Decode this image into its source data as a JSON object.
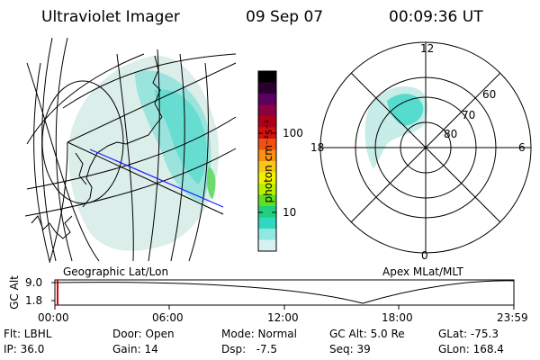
{
  "header": {
    "instrument": "Ultraviolet Imager",
    "date": "09 Sep 07",
    "time": "00:09:36 UT"
  },
  "colorbar": {
    "unit_label": "photon cm⁻²s⁻¹",
    "ticks": [
      "100",
      "10"
    ],
    "colors": [
      "#000000",
      "#2b0030",
      "#5a0060",
      "#8a0040",
      "#b00018",
      "#d8100c",
      "#f05010",
      "#f89010",
      "#f8c818",
      "#f0f000",
      "#b8f000",
      "#60e020",
      "#20d080",
      "#30d8c0",
      "#90e8e0",
      "#d8f0f0"
    ]
  },
  "left_panel": {
    "label": "Geographic Lat/Lon"
  },
  "right_panel": {
    "label": "Apex MLat/MLT",
    "mlt_labels": [
      "12",
      "18",
      "6",
      "0"
    ],
    "mlat_labels": [
      "60",
      "70",
      "80"
    ]
  },
  "altitude_plot": {
    "ylabel": "GC Alt",
    "yticks": [
      "9.0",
      "1.8"
    ],
    "xticks": [
      "00:00",
      "06:00",
      "12:00",
      "18:00",
      "23:59"
    ]
  },
  "status": {
    "flt": "Flt: LBHL",
    "ip": "IP: 36.0",
    "door": "Door: Open",
    "gain": "Gain: 14",
    "mode": "Mode: Normal",
    "dsp": "Dsp:   -7.5",
    "gc_alt": "GC Alt: 5.0 Re",
    "seq": "Seq: 39",
    "glat": "GLat: -75.3",
    "glon": "GLon: 168.4"
  }
}
